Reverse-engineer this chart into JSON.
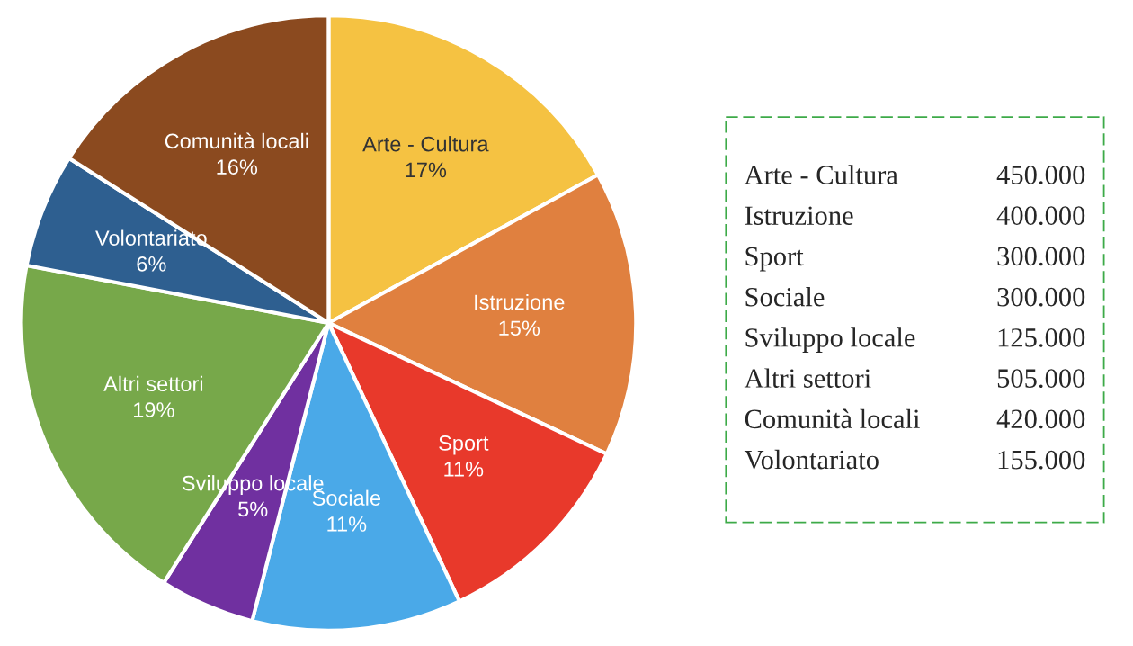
{
  "chart_data": {
    "type": "pie",
    "categories": [
      "Arte - Cultura",
      "Istruzione",
      "Sport",
      "Sociale",
      "Sviluppo locale",
      "Altri settori",
      "Volontariato",
      "Comunità locali"
    ],
    "values": [
      17,
      15,
      11,
      11,
      5,
      19,
      6,
      16
    ],
    "value_labels": [
      "17%",
      "15%",
      "11%",
      "11%",
      "5%",
      "19%",
      "6%",
      "16%"
    ],
    "colors": [
      "#f5c242",
      "#e0803f",
      "#e8392b",
      "#4aa9e8",
      "#7030a0",
      "#77a84a",
      "#2e5f90",
      "#8b4a1f"
    ],
    "annotations": [
      "Arte - Cultura",
      "450.000",
      "Istruzione",
      "400.000",
      "Sport",
      "300.000",
      "Sociale",
      "300.000",
      "Sviluppo locale",
      "125.000",
      "Altri settori",
      "505.000",
      "Comunità locali",
      "420.000",
      "Volontariato",
      "155.000"
    ]
  }
}
